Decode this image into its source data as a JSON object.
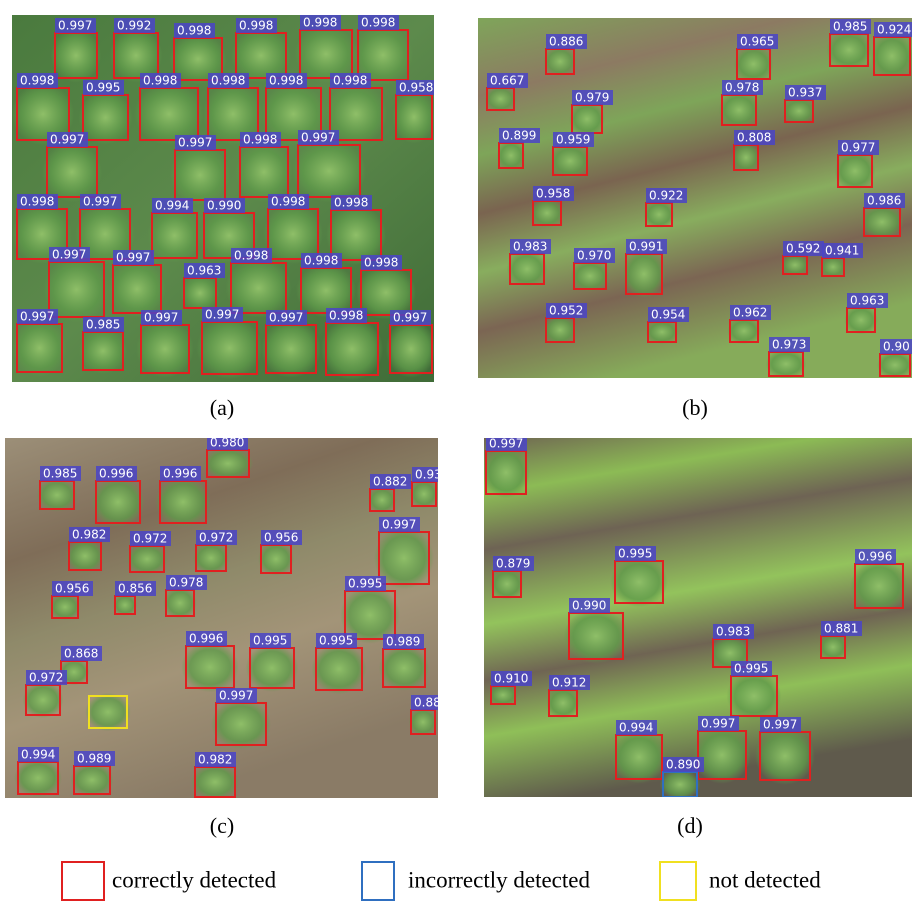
{
  "panels": [
    {
      "label": "(a)",
      "detections": [
        "0.997",
        "0.992",
        "0.998",
        "0.998",
        "0.998",
        "0.998",
        "0.998",
        "0.995",
        "0.998",
        "0.998",
        "0.998",
        "0.998",
        "0.958",
        "0.997",
        "0.997",
        "0.998",
        "0.997",
        "0.998",
        "0.997",
        "0.994",
        "0.990",
        "0.998",
        "0.998",
        "0.997",
        "0.997",
        "0.963",
        "0.998",
        "0.998",
        "0.998",
        "0.997",
        "0.985",
        "0.997",
        "0.997",
        "0.997",
        "0.998",
        "0.997"
      ]
    },
    {
      "label": "(b)",
      "detections": [
        "0.886",
        "0.965",
        "0.985",
        "0.924",
        "0.667",
        "0.979",
        "0.978",
        "0.937",
        "0.899",
        "0.959",
        "0.808",
        "0.977",
        "0.958",
        "0.922",
        "0.986",
        "0.983",
        "0.970",
        "0.991",
        "0.592",
        "0.941",
        "0.952",
        "0.954",
        "0.962",
        "0.963",
        "0.973",
        "0.90"
      ]
    },
    {
      "label": "(c)",
      "detections": [
        "0.980",
        "0.985",
        "0.996",
        "0.996",
        "0.882",
        "0.93",
        "0.982",
        "0.972",
        "0.972",
        "0.956",
        "0.997",
        "0.956",
        "0.856",
        "0.978",
        "0.995",
        "0.996",
        "0.995",
        "0.995",
        "0.989",
        "0.868",
        "0.972",
        "0.997",
        "0.88",
        "0.994",
        "0.989",
        "0.982"
      ]
    },
    {
      "label": "(d)",
      "detections": [
        "0.997",
        "0.879",
        "0.995",
        "0.996",
        "0.990",
        "0.983",
        "0.881",
        "0.910",
        "0.912",
        "0.995",
        "0.994",
        "0.997",
        "0.997",
        "0.890"
      ]
    }
  ],
  "legend": [
    "correctly detected",
    "incorrectly detected",
    "not detected"
  ]
}
